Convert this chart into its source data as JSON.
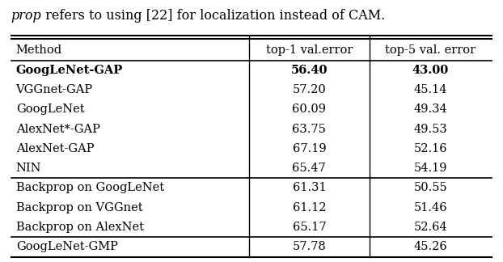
{
  "caption": "prop refers to using [22] for localization instead of CAM.",
  "caption_italic_part": "prop",
  "caption_rest": " refers to using [22] for localization instead of CAM.",
  "headers": [
    "Method",
    "top-1 val.error",
    "top-5 val. error"
  ],
  "rows": [
    [
      "GoogLeNet-GAP",
      "56.40",
      "43.00"
    ],
    [
      "VGGnet-GAP",
      "57.20",
      "45.14"
    ],
    [
      "GoogLeNet",
      "60.09",
      "49.34"
    ],
    [
      "AlexNet*-GAP",
      "63.75",
      "49.53"
    ],
    [
      "AlexNet-GAP",
      "67.19",
      "52.16"
    ],
    [
      "NIN",
      "65.47",
      "54.19"
    ],
    [
      "Backprop on GoogLeNet",
      "61.31",
      "50.55"
    ],
    [
      "Backprop on VGGnet",
      "61.12",
      "51.46"
    ],
    [
      "Backprop on AlexNet",
      "65.17",
      "52.64"
    ],
    [
      "GoogLeNet-GMP",
      "57.78",
      "45.26"
    ]
  ],
  "bold_rows": [
    0
  ],
  "separator_after": [
    5,
    8
  ],
  "background_color": "#ffffff",
  "text_color": "#000000",
  "font_size": 10.5,
  "header_font_size": 10.5,
  "caption_font_size": 11.5,
  "fig_width": 6.22,
  "fig_height": 3.24,
  "dpi": 100
}
